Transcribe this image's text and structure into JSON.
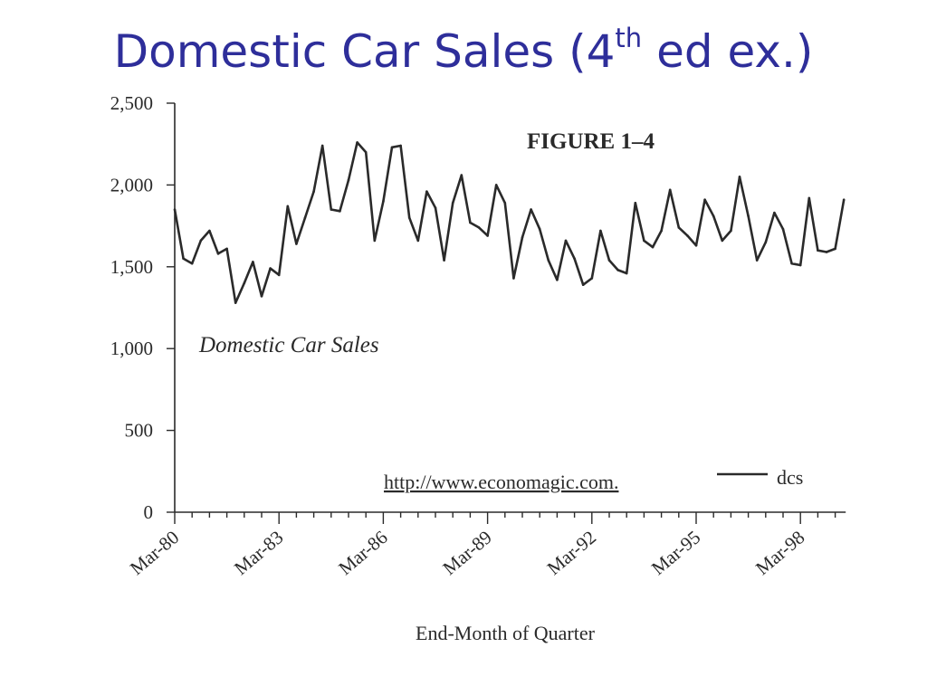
{
  "slide": {
    "title_main": "Domestic Car Sales (4",
    "title_sup": "th",
    "title_end": " ed ex.)",
    "colors": {
      "title": "#2e2e9a",
      "ink": "#2a2a2a"
    }
  },
  "chart_data": {
    "type": "line",
    "figure_label": "FIGURE 1–4",
    "chart_title": "Domestic Car Sales",
    "source_text": "http://www.economagic.com.",
    "xlabel": "End-Month of Quarter",
    "ylabel": "",
    "ylim": [
      0,
      2500
    ],
    "y_ticks": [
      "0",
      "500",
      "1,000",
      "1,500",
      "2,000",
      "2,500"
    ],
    "y_tick_values": [
      0,
      500,
      1000,
      1500,
      2000,
      2500
    ],
    "x_tick_labels": [
      "Mar-80",
      "Mar-83",
      "Mar-86",
      "Mar-89",
      "Mar-92",
      "Mar-95",
      "Mar-98"
    ],
    "x_tick_quarter_index": [
      0,
      12,
      24,
      36,
      48,
      60,
      72
    ],
    "grid": false,
    "legend": {
      "placement": "bottom-right",
      "label": "dcs"
    },
    "series": [
      {
        "name": "dcs",
        "values": [
          1850,
          1550,
          1520,
          1660,
          1720,
          1580,
          1610,
          1280,
          1400,
          1530,
          1320,
          1490,
          1450,
          1870,
          1640,
          1800,
          1960,
          2240,
          1850,
          1840,
          2030,
          2260,
          2200,
          1660,
          1900,
          2230,
          2240,
          1800,
          1660,
          1960,
          1860,
          1540,
          1890,
          2060,
          1770,
          1740,
          1690,
          2000,
          1890,
          1430,
          1680,
          1850,
          1730,
          1540,
          1420,
          1660,
          1550,
          1390,
          1430,
          1720,
          1540,
          1480,
          1460,
          1890,
          1660,
          1620,
          1720,
          1970,
          1740,
          1690,
          1630,
          1910,
          1810,
          1660,
          1720,
          2050,
          1810,
          1540,
          1650,
          1830,
          1730,
          1520,
          1510,
          1920,
          1600,
          1590,
          1610,
          1910
        ]
      }
    ]
  }
}
